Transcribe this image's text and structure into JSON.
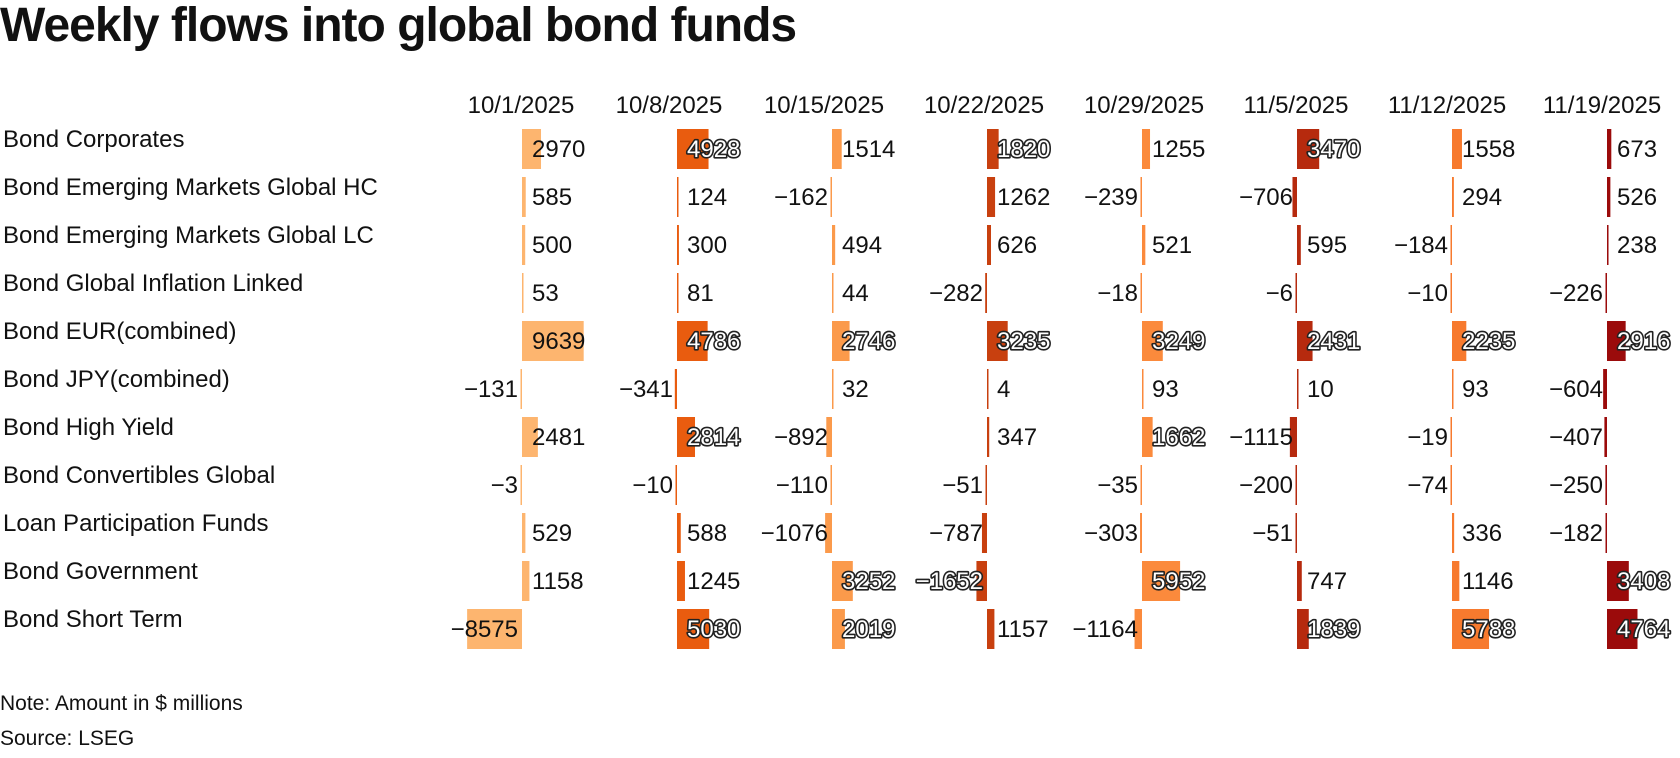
{
  "title": "Weekly flows into global bond funds",
  "note": "Note: Amount in $ millions",
  "source": "Source: LSEG",
  "chart_data": {
    "type": "table",
    "title": "Weekly flows into global bond funds",
    "columns": [
      "10/1/2025",
      "10/8/2025",
      "10/15/2025",
      "10/22/2025",
      "10/29/2025",
      "11/5/2025",
      "11/12/2025",
      "11/19/2025"
    ],
    "column_colors": [
      "#fdb56f",
      "#e95c0f",
      "#fb9a4b",
      "#c8400f",
      "#fb8a3c",
      "#b62a0e",
      "#f77a2e",
      "#9b0b0b"
    ],
    "rows": [
      {
        "label": "Bond Corporates",
        "values": [
          2970,
          4928,
          1514,
          1820,
          1255,
          3470,
          1558,
          673
        ]
      },
      {
        "label": "Bond Emerging Markets Global HC",
        "values": [
          585,
          124,
          -162,
          1262,
          -239,
          -706,
          294,
          526
        ]
      },
      {
        "label": "Bond Emerging Markets Global LC",
        "values": [
          500,
          300,
          494,
          626,
          521,
          595,
          -184,
          238
        ]
      },
      {
        "label": "Bond Global Inflation Linked",
        "values": [
          53,
          81,
          44,
          -282,
          -18,
          -6,
          -10,
          -226
        ]
      },
      {
        "label": "Bond EUR(combined)",
        "values": [
          9639,
          4786,
          2746,
          3235,
          3249,
          2431,
          2235,
          2916
        ]
      },
      {
        "label": "Bond JPY(combined)",
        "values": [
          -131,
          -341,
          32,
          4,
          93,
          10,
          93,
          -604
        ]
      },
      {
        "label": "Bond High Yield",
        "values": [
          2481,
          2814,
          -892,
          347,
          1662,
          -1115,
          -19,
          -407
        ]
      },
      {
        "label": "Bond Convertibles Global",
        "values": [
          -3,
          -10,
          -110,
          -51,
          -35,
          -200,
          -74,
          -250
        ]
      },
      {
        "label": "Loan Participation Funds",
        "values": [
          529,
          588,
          -1076,
          -787,
          -303,
          -51,
          336,
          -182
        ]
      },
      {
        "label": "Bond Government",
        "values": [
          1158,
          1245,
          3252,
          -1652,
          5952,
          747,
          1146,
          3408
        ]
      },
      {
        "label": "Bond Short Term",
        "values": [
          -8575,
          5030,
          2019,
          1157,
          -1164,
          1839,
          5788,
          4764
        ]
      }
    ]
  }
}
